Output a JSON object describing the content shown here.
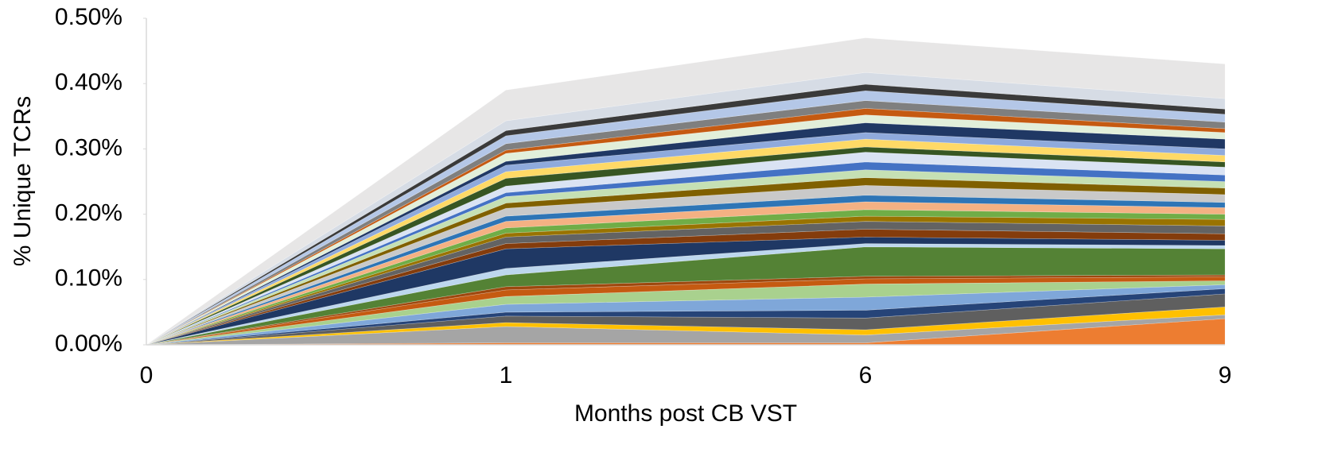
{
  "chart_data": {
    "type": "stacked_area",
    "x_label": "Months post CB VST",
    "y_label": "% Unique TCRs",
    "categories": [
      "0",
      "1",
      "6",
      "9"
    ],
    "ylim": [
      0,
      0.5
    ],
    "yticks": [
      {
        "value": 0,
        "label": "0.00%"
      },
      {
        "value": 0.1,
        "label": "0.10%"
      },
      {
        "value": 0.2,
        "label": "0.20%"
      },
      {
        "value": 0.3,
        "label": "0.30%"
      },
      {
        "value": 0.4,
        "label": "0.40%"
      },
      {
        "value": 0.5,
        "label": "0.50%"
      }
    ],
    "series": [
      {
        "color": "#ed7d31",
        "values": [
          0,
          0.003,
          0.003,
          0.04
        ]
      },
      {
        "color": "#a5a5a5",
        "values": [
          0,
          0.025,
          0.012,
          0.006
        ]
      },
      {
        "color": "#ffc000",
        "values": [
          0,
          0.006,
          0.008,
          0.012
        ]
      },
      {
        "color": "#5f5f5f",
        "values": [
          0,
          0.01,
          0.018,
          0.02
        ]
      },
      {
        "color": "#264478",
        "values": [
          0,
          0.006,
          0.012,
          0.008
        ]
      },
      {
        "color": "#7fa7d9",
        "values": [
          0,
          0.012,
          0.02,
          0.006
        ]
      },
      {
        "color": "#a9d18e",
        "values": [
          0,
          0.012,
          0.02,
          0.006
        ]
      },
      {
        "color": "#c55a11",
        "values": [
          0,
          0.01,
          0.008,
          0.006
        ]
      },
      {
        "color": "#9e480e",
        "values": [
          0,
          0.005,
          0.004,
          0.003
        ]
      },
      {
        "color": "#548235",
        "values": [
          0,
          0.018,
          0.045,
          0.04
        ]
      },
      {
        "color": "#bdd7ee",
        "values": [
          0,
          0.01,
          0.005,
          0.005
        ]
      },
      {
        "color": "#1f3864",
        "values": [
          0,
          0.03,
          0.01,
          0.008
        ]
      },
      {
        "color": "#843c0c",
        "values": [
          0,
          0.008,
          0.012,
          0.01
        ]
      },
      {
        "color": "#636363",
        "values": [
          0,
          0.01,
          0.012,
          0.012
        ]
      },
      {
        "color": "#997300",
        "values": [
          0,
          0.006,
          0.008,
          0.01
        ]
      },
      {
        "color": "#70ad47",
        "values": [
          0,
          0.008,
          0.01,
          0.008
        ]
      },
      {
        "color": "#f4b183",
        "values": [
          0,
          0.01,
          0.012,
          0.01
        ]
      },
      {
        "color": "#2e75b6",
        "values": [
          0,
          0.008,
          0.01,
          0.008
        ]
      },
      {
        "color": "#c9c9c9",
        "values": [
          0,
          0.012,
          0.015,
          0.012
        ]
      },
      {
        "color": "#806000",
        "values": [
          0,
          0.008,
          0.012,
          0.01
        ]
      },
      {
        "color": "#c5e0b4",
        "values": [
          0,
          0.01,
          0.012,
          0.01
        ]
      },
      {
        "color": "#4472c4",
        "values": [
          0,
          0.006,
          0.012,
          0.01
        ]
      },
      {
        "color": "#dae3f3",
        "values": [
          0,
          0.01,
          0.015,
          0.012
        ]
      },
      {
        "color": "#375623",
        "values": [
          0,
          0.012,
          0.008,
          0.008
        ]
      },
      {
        "color": "#ffd966",
        "values": [
          0,
          0.01,
          0.012,
          0.01
        ]
      },
      {
        "color": "#8faadc",
        "values": [
          0,
          0.01,
          0.01,
          0.01
        ]
      },
      {
        "color": "#203864",
        "values": [
          0,
          0.006,
          0.015,
          0.015
        ]
      },
      {
        "color": "#e2efda",
        "values": [
          0,
          0.012,
          0.012,
          0.01
        ]
      },
      {
        "color": "#c55a11",
        "values": [
          0,
          0.005,
          0.01,
          0.006
        ]
      },
      {
        "color": "#7f7f7f",
        "values": [
          0,
          0.01,
          0.012,
          0.01
        ]
      },
      {
        "color": "#b4c7e7",
        "values": [
          0,
          0.012,
          0.015,
          0.012
        ]
      },
      {
        "color": "#3a3a3a",
        "values": [
          0,
          0.008,
          0.01,
          0.008
        ]
      },
      {
        "color": "#d6dce5",
        "values": [
          0,
          0.015,
          0.018,
          0.016
        ]
      },
      {
        "color": "#e7e6e6",
        "values": [
          0,
          0.047,
          0.053,
          0.053
        ]
      }
    ]
  }
}
